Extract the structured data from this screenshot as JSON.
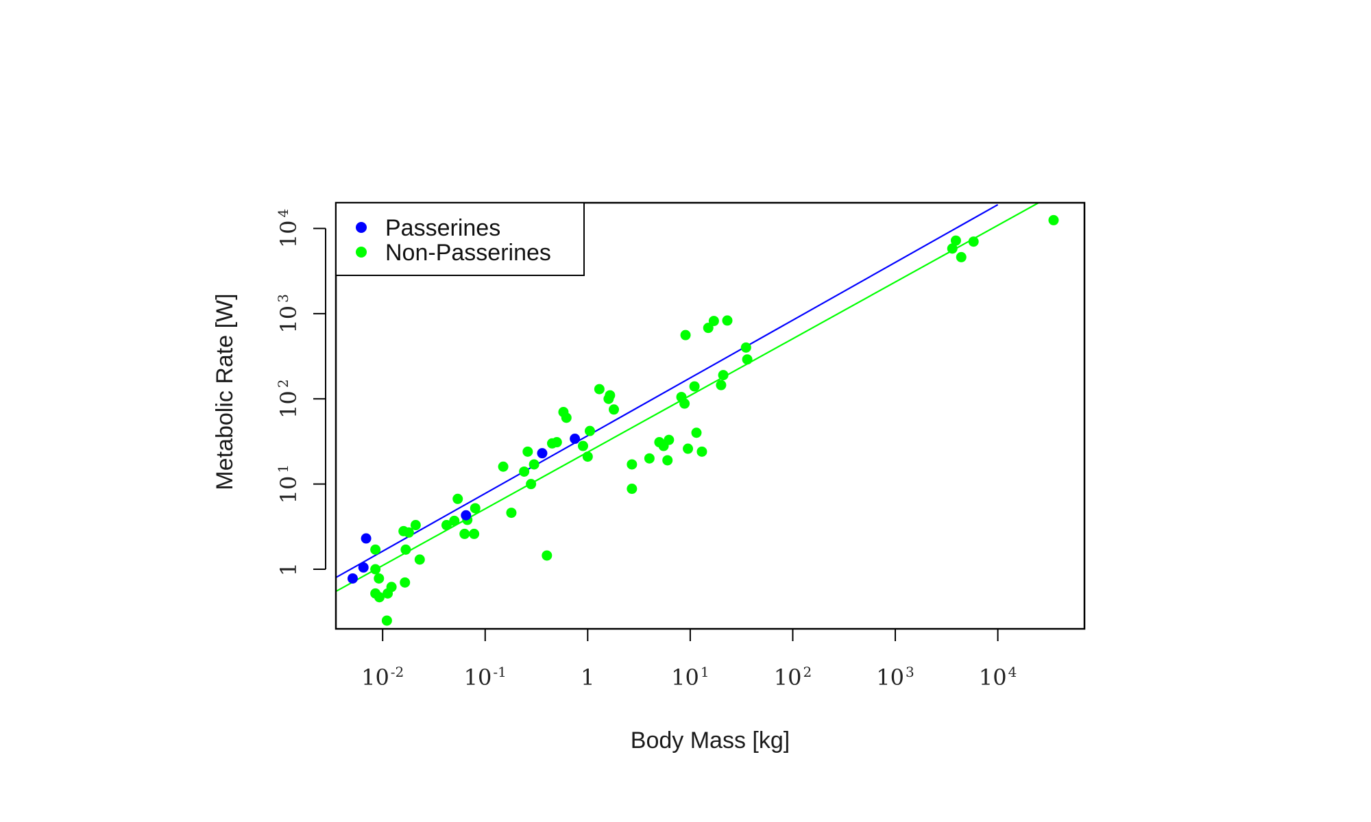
{
  "chart_data": {
    "type": "scatter",
    "title": "",
    "xlabel": "Body Mass [kg]",
    "ylabel": "Metabolic Rate [W]",
    "x_scale": "log",
    "y_scale": "log",
    "xlim": [
      0.0035,
      70000
    ],
    "ylim": [
      0.2,
      20000
    ],
    "x_ticks": [
      {
        "value": 0.01,
        "base": "10",
        "exp": "-2"
      },
      {
        "value": 0.1,
        "base": "10",
        "exp": "-1"
      },
      {
        "value": 1,
        "base": "1",
        "exp": ""
      },
      {
        "value": 10,
        "base": "10",
        "exp": "1"
      },
      {
        "value": 100,
        "base": "10",
        "exp": "2"
      },
      {
        "value": 1000,
        "base": "10",
        "exp": "3"
      },
      {
        "value": 10000,
        "base": "10",
        "exp": "4"
      }
    ],
    "y_ticks": [
      {
        "value": 1,
        "base": "1",
        "exp": ""
      },
      {
        "value": 10,
        "base": "10",
        "exp": "1"
      },
      {
        "value": 100,
        "base": "10",
        "exp": "2"
      },
      {
        "value": 1000,
        "base": "10",
        "exp": "3"
      },
      {
        "value": 10000,
        "base": "10",
        "exp": "4"
      }
    ],
    "grid": false,
    "legend_position": "top-left",
    "series": [
      {
        "name": "Passerines",
        "color": "#0000ff",
        "points": [
          [
            0.0051,
            0.78
          ],
          [
            0.0065,
            1.05
          ],
          [
            0.0069,
            2.3
          ],
          [
            0.065,
            4.3
          ],
          [
            0.36,
            23
          ],
          [
            0.75,
            34
          ]
        ],
        "fit_line": {
          "x": [
            0.0035,
            10000
          ],
          "y": [
            0.8,
            19000
          ]
        }
      },
      {
        "name": "Non-Passerines",
        "color": "#00ff00",
        "points": [
          [
            0.0085,
            1.7
          ],
          [
            0.0085,
            1.0
          ],
          [
            0.0085,
            0.52
          ],
          [
            0.0092,
            0.78
          ],
          [
            0.0093,
            0.47
          ],
          [
            0.011,
            0.25
          ],
          [
            0.0112,
            0.52
          ],
          [
            0.0122,
            0.62
          ],
          [
            0.016,
            2.8
          ],
          [
            0.0165,
            0.7
          ],
          [
            0.0168,
            1.7
          ],
          [
            0.018,
            2.7
          ],
          [
            0.021,
            3.3
          ],
          [
            0.023,
            1.3
          ],
          [
            0.042,
            3.3
          ],
          [
            0.05,
            3.7
          ],
          [
            0.054,
            6.7
          ],
          [
            0.063,
            2.6
          ],
          [
            0.067,
            3.8
          ],
          [
            0.078,
            2.6
          ],
          [
            0.08,
            5.2
          ],
          [
            0.15,
            16
          ],
          [
            0.18,
            4.6
          ],
          [
            0.24,
            14
          ],
          [
            0.26,
            24
          ],
          [
            0.28,
            10
          ],
          [
            0.3,
            17
          ],
          [
            0.4,
            1.45
          ],
          [
            0.45,
            30
          ],
          [
            0.5,
            31
          ],
          [
            0.58,
            70
          ],
          [
            0.62,
            60
          ],
          [
            0.9,
            28
          ],
          [
            1.0,
            21
          ],
          [
            1.05,
            42
          ],
          [
            1.3,
            130
          ],
          [
            1.6,
            100
          ],
          [
            1.65,
            110
          ],
          [
            1.8,
            75
          ],
          [
            2.7,
            8.8
          ],
          [
            2.7,
            17
          ],
          [
            4.0,
            20
          ],
          [
            5.0,
            31
          ],
          [
            5.5,
            28
          ],
          [
            6.0,
            19
          ],
          [
            6.2,
            33
          ],
          [
            8.2,
            105
          ],
          [
            8.8,
            88
          ],
          [
            9.0,
            560
          ],
          [
            9.5,
            26
          ],
          [
            11,
            140
          ],
          [
            11.5,
            40
          ],
          [
            13,
            24
          ],
          [
            15,
            680
          ],
          [
            17,
            820
          ],
          [
            20,
            145
          ],
          [
            21,
            190
          ],
          [
            23,
            830
          ],
          [
            35,
            400
          ],
          [
            36,
            290
          ],
          [
            3600,
            5800
          ],
          [
            3900,
            7200
          ],
          [
            4400,
            4600
          ],
          [
            5800,
            7000
          ],
          [
            35000,
            12500
          ]
        ],
        "fit_line": {
          "x": [
            0.0035,
            25000
          ],
          "y": [
            0.55,
            20000
          ]
        }
      }
    ]
  }
}
